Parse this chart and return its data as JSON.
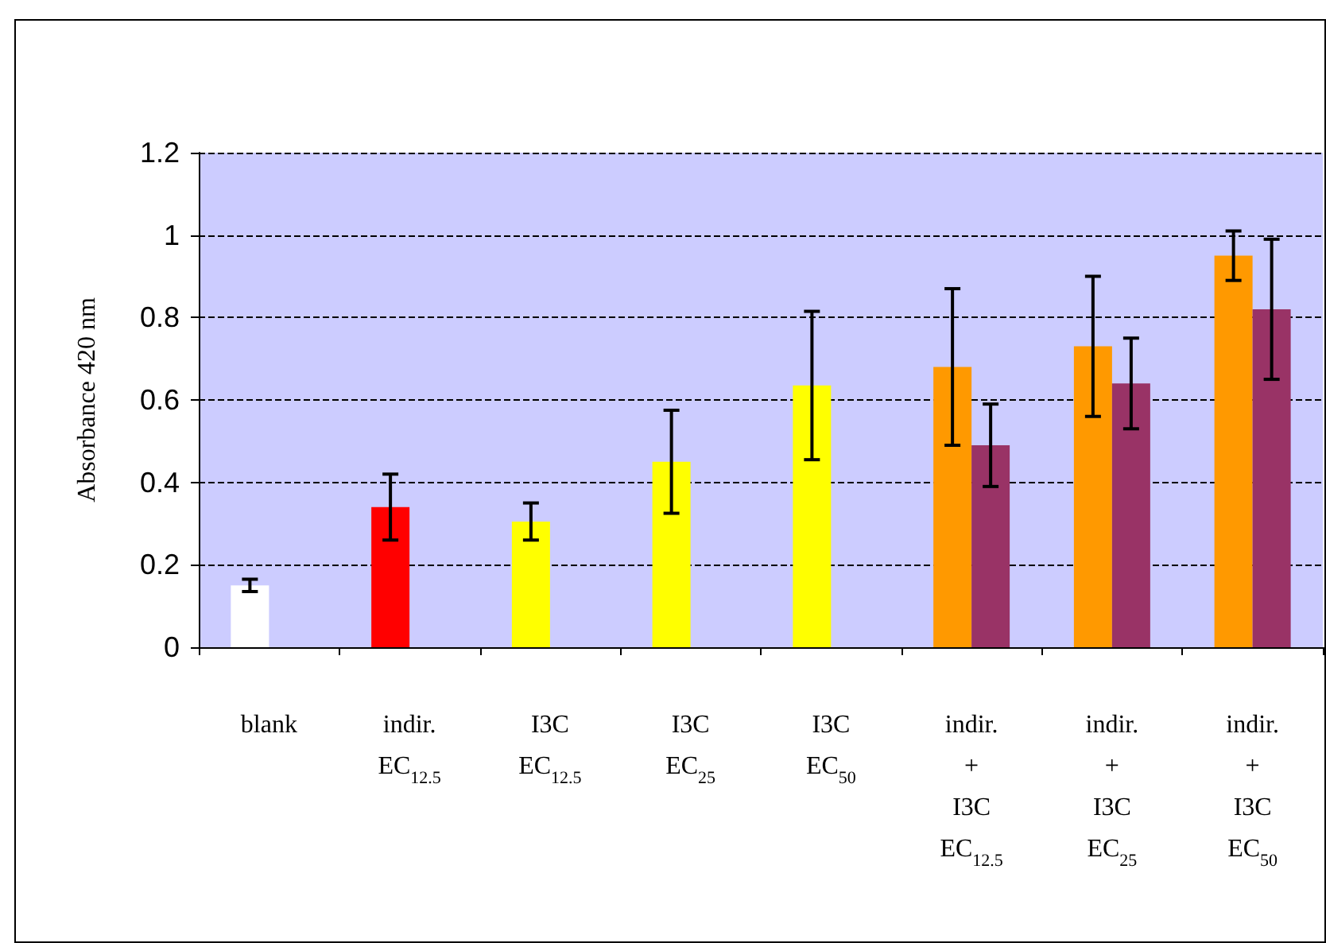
{
  "chart_data": {
    "type": "bar",
    "ylabel": "Absorbance 420 nm",
    "categories": [
      "blank",
      "indir.\nEC$_{12.5}$",
      "I3C\nEC$_{12.5}$",
      "I3C\nEC$_{25}$",
      "I3C\nEC$_{50}$",
      "indir.\n+\nI3C\nEC$_{12.5}$",
      "indir.\n+\nI3C\nEC$_{25}$",
      "indir.\n+\nI3C\nEC$_{50}$"
    ],
    "series": [
      {
        "colors": [
          "#ffffff",
          "#ff0000",
          "#ffff00",
          "#ffff00",
          "#ffff00",
          "#ff9900",
          "#ff9900",
          "#ff9900"
        ],
        "values": [
          0.15,
          0.34,
          0.305,
          0.45,
          0.635,
          0.68,
          0.73,
          0.95
        ],
        "errors": [
          0.015,
          0.08,
          0.045,
          0.125,
          0.18,
          0.19,
          0.17,
          0.06
        ]
      },
      {
        "color": "#993366",
        "values": [
          null,
          null,
          null,
          null,
          null,
          0.49,
          0.64,
          0.82
        ],
        "errors": [
          null,
          null,
          null,
          null,
          null,
          0.1,
          0.11,
          0.17
        ]
      }
    ],
    "ylim": [
      0,
      1.2
    ],
    "yticks": [
      0,
      0.2,
      0.4,
      0.6,
      0.8,
      1,
      1.2
    ],
    "grid": "y",
    "line_style": "dashed"
  }
}
